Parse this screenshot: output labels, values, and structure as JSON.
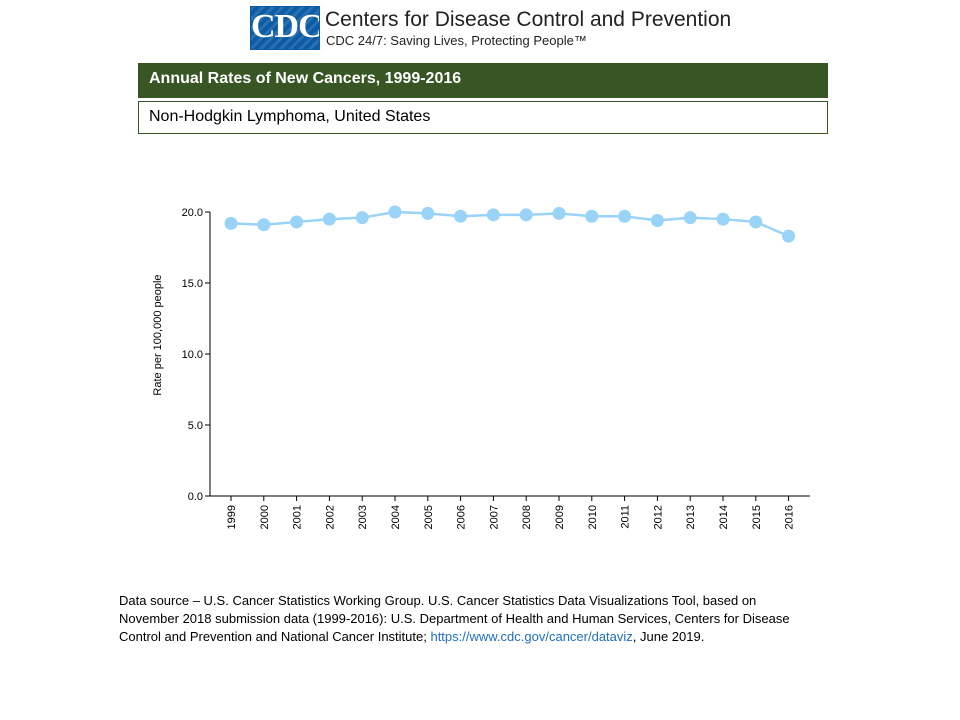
{
  "header": {
    "logo_text": "CDC",
    "org_name": "Centers for Disease Control and Prevention",
    "tagline": "CDC 24/7: Saving Lives, Protecting People™"
  },
  "title": "Annual Rates of New Cancers, 1999-2016",
  "subtitle": "Non-Hodgkin Lymphoma, United States",
  "colors": {
    "title_bar": "#375623",
    "series": "#99d3f7",
    "link": "#1f6fbf"
  },
  "chart_data": {
    "type": "line",
    "categories": [
      "1999",
      "2000",
      "2001",
      "2002",
      "2003",
      "2004",
      "2005",
      "2006",
      "2007",
      "2008",
      "2009",
      "2010",
      "2011",
      "2012",
      "2013",
      "2014",
      "2015",
      "2016"
    ],
    "series": [
      {
        "values": [
          19.2,
          19.1,
          19.3,
          19.5,
          19.6,
          20.0,
          19.9,
          19.7,
          19.8,
          19.8,
          19.9,
          19.7,
          19.7,
          19.4,
          19.6,
          19.5,
          19.3,
          18.3
        ]
      }
    ],
    "ylabel": "Rate per 100,000 people",
    "ylim": [
      0,
      20
    ],
    "yticks": [
      "0.0",
      "5.0",
      "10.0",
      "15.0",
      "20.0"
    ],
    "grid": false,
    "legend": "none"
  },
  "footer": {
    "source_text": "Data source – U.S. Cancer Statistics Working Group. U.S. Cancer Statistics Data Visualizations Tool, based on November 2018 submission data (1999-2016): U.S. Department of Health and Human Services, Centers for Disease Control and Prevention and National Cancer Institute; ",
    "link_text": "https://www.cdc.gov/cancer/dataviz",
    "source_suffix": ", June 2019."
  }
}
